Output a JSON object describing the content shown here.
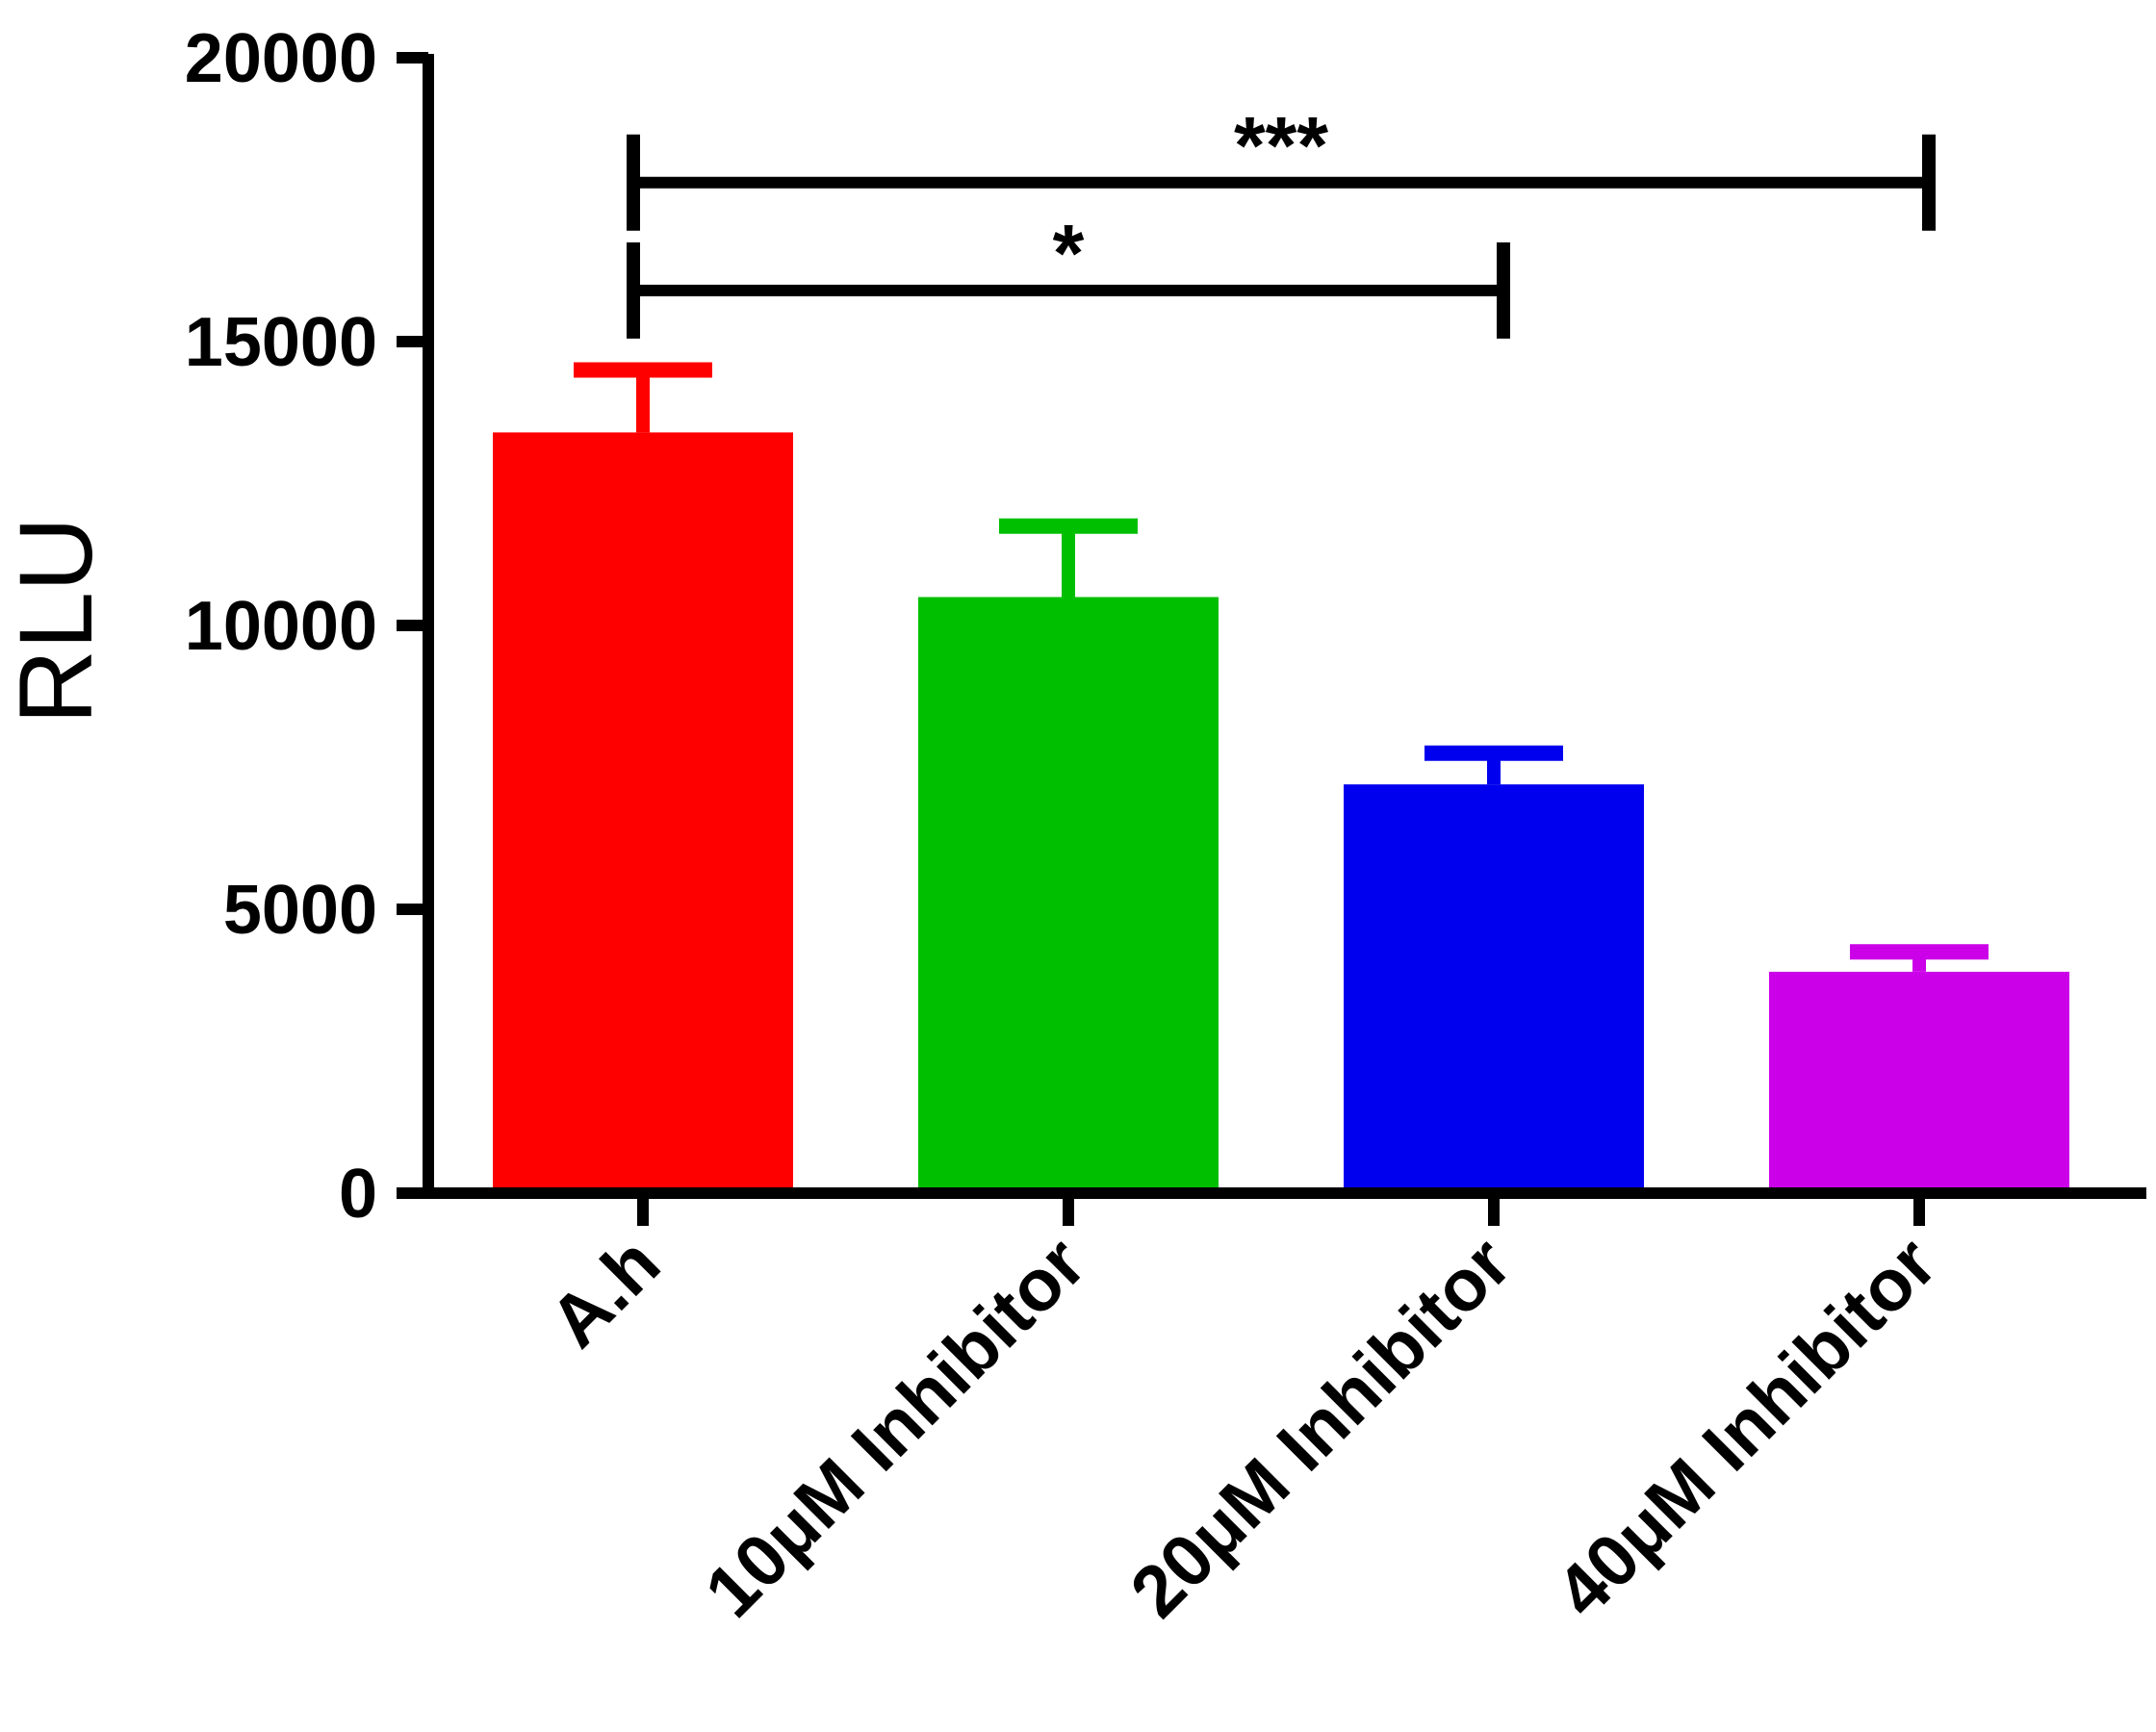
{
  "chart_data": {
    "type": "bar",
    "title": "",
    "xlabel": "",
    "ylabel": "RLU",
    "ylim": [
      0,
      20000
    ],
    "yticks": [
      0,
      5000,
      10000,
      15000,
      20000
    ],
    "yticks_text": [
      "0",
      "5000",
      "10000",
      "15000",
      "20000"
    ],
    "grid": false,
    "categories": [
      "A.h",
      "10μM Inhibitor",
      "20μM Inhibitor",
      "40μM Inhibitor"
    ],
    "values": [
      13400,
      10500,
      7200,
      3900
    ],
    "error_upper": [
      1100,
      1250,
      550,
      350
    ],
    "colors": [
      "#ff0000",
      "#00bf00",
      "#0000ee",
      "#cc00e8"
    ],
    "significance": [
      {
        "from": 0,
        "to": 3,
        "label": "***",
        "y": 17800
      },
      {
        "from": 0,
        "to": 2,
        "label": "*",
        "y": 15900
      }
    ]
  }
}
